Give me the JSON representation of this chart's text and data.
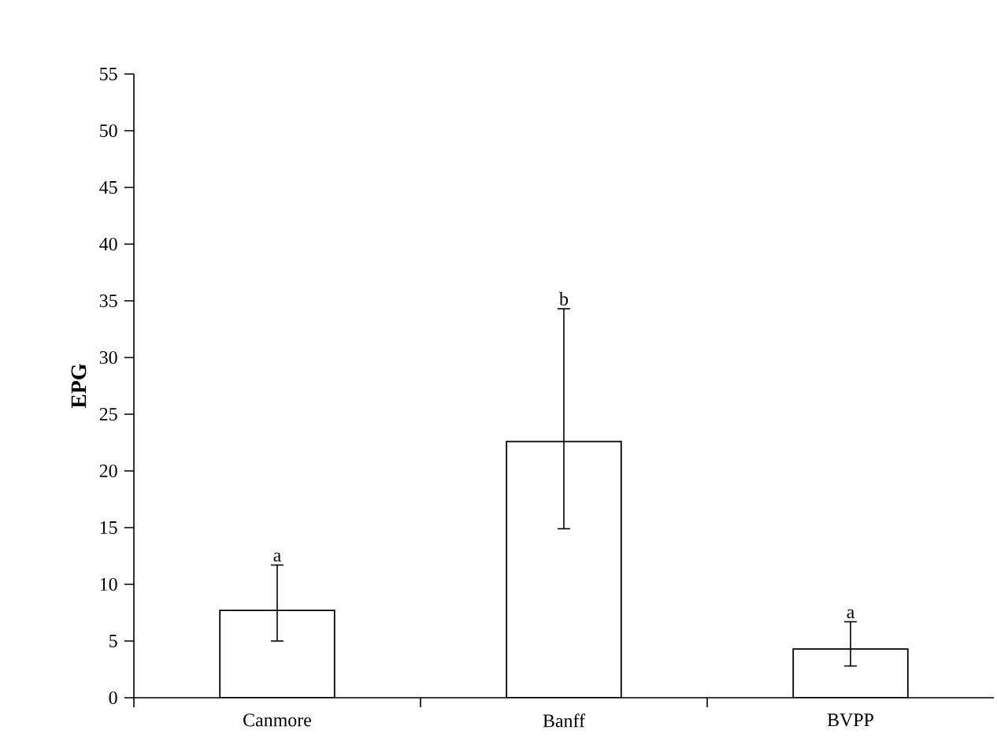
{
  "chart_data": {
    "type": "bar",
    "ylabel": "**EPG**",
    "categories": [
      "Canmore",
      "Banff",
      "BVPP"
    ],
    "values": [
      7.7,
      22.6,
      4.3
    ],
    "errors": [
      [
        5.0,
        11.7
      ],
      [
        14.9,
        34.3
      ],
      [
        2.8,
        6.7
      ]
    ],
    "color": "#ffffff",
    "ylim": [
      0,
      55
    ],
    "yticks": [
      0,
      5,
      10,
      15,
      20,
      25,
      30,
      35,
      40,
      45,
      50,
      55
    ],
    "annotations": [
      {
        "text": "a",
        "x": "Canmore",
        "y": 11.7
      },
      {
        "text": "b",
        "x": "Banff",
        "y": 34.3
      },
      {
        "text": "a",
        "x": "BVPP",
        "y": 6.7
      }
    ],
    "grid": false,
    "legend": false
  }
}
